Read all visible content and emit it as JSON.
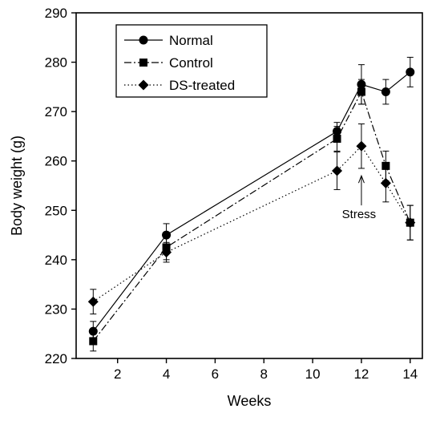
{
  "chart_data": {
    "type": "line",
    "xlabel": "Weeks",
    "ylabel": "Body weight (g)",
    "xlim": [
      0.3,
      14.5
    ],
    "ylim": [
      220,
      290
    ],
    "xticks": [
      2,
      4,
      6,
      8,
      10,
      12,
      14
    ],
    "yticks": [
      220,
      230,
      240,
      250,
      260,
      270,
      280,
      290
    ],
    "grid": false,
    "legend": "top-left",
    "series": [
      {
        "name": "Normal",
        "marker": "circle",
        "line": "solid",
        "x": [
          1,
          4,
          11,
          12,
          13,
          14
        ],
        "y": [
          225.5,
          245,
          266,
          275.5,
          274,
          278
        ],
        "err": [
          2,
          2.3,
          1.8,
          4,
          2.5,
          3
        ]
      },
      {
        "name": "Control",
        "marker": "square",
        "line": "dashdot",
        "x": [
          1,
          4,
          11,
          12,
          13,
          14
        ],
        "y": [
          223.5,
          242.5,
          264.5,
          274,
          259,
          247.5
        ],
        "err": [
          2,
          2.5,
          2.5,
          2.5,
          3,
          3.5
        ]
      },
      {
        "name": "DS-treated",
        "marker": "diamond",
        "line": "dotted",
        "x": [
          1,
          4,
          11,
          12,
          13,
          14
        ],
        "y": [
          231.5,
          241.5,
          258,
          263,
          255.5,
          247.5
        ],
        "err": [
          2.5,
          2,
          3.8,
          4.5,
          3.8,
          3.5
        ]
      }
    ],
    "annotations": [
      {
        "text": "Stress",
        "arrow_x": 12,
        "arrow_from_y": 251,
        "arrow_to_y": 257
      }
    ]
  }
}
